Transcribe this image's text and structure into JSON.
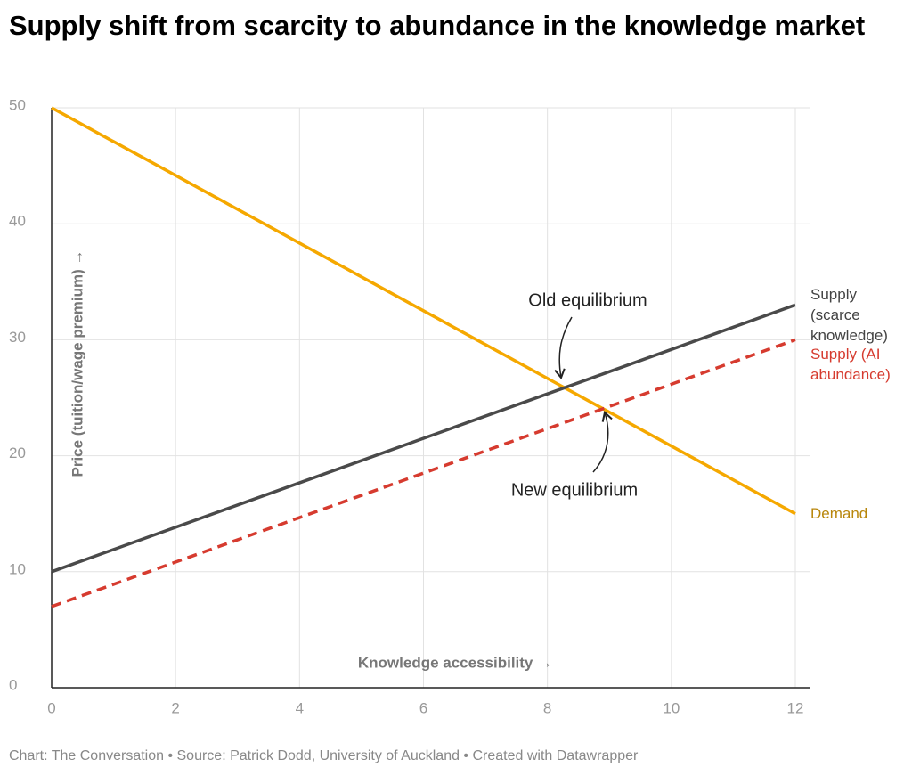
{
  "chart_data": {
    "type": "line",
    "title": "Supply shift from scarcity to abundance in the knowledge market",
    "x_label": "Knowledge accessibility →",
    "y_label": "Price (tuition/wage premium) →",
    "x": [
      0,
      12
    ],
    "series": [
      {
        "name": "Demand",
        "color": "#f5a800",
        "values": [
          50,
          15
        ]
      },
      {
        "name": "Supply (scarce knowledge)",
        "color": "#4a4a4a",
        "values": [
          10,
          33
        ]
      },
      {
        "name": "Supply (AI abundance)",
        "color": "#d63b2f",
        "values": [
          7,
          30
        ],
        "dashed": true
      }
    ],
    "annotations": [
      "Old equilibrium",
      "New equilibrium"
    ],
    "xlim": [
      0,
      12
    ],
    "xticks": [
      0,
      2,
      4,
      6,
      8,
      10,
      12
    ],
    "ylim": [
      0,
      50
    ],
    "yticks": [
      0,
      10,
      20,
      30,
      40,
      50
    ],
    "grid": true,
    "footer": "Chart: The Conversation • Source: Patrick Dodd, University of Auckland • Created with Datawrapper"
  }
}
